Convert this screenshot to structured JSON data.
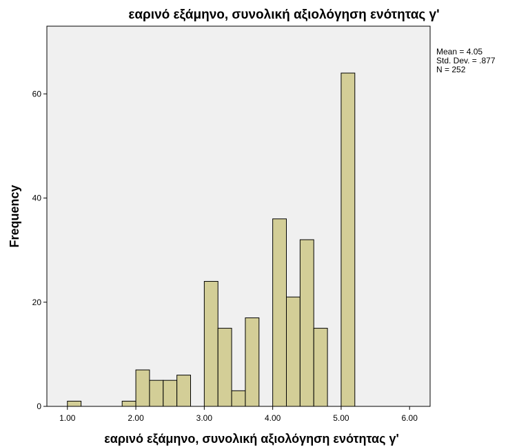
{
  "chart_data": {
    "type": "bar",
    "title": "εαρινό εξάμηνο, συνολική αξιολόγηση ενότητας γ'",
    "xlabel": "εαρινό εξάμηνο, συνολική αξιολόγηση ενότητας γ'",
    "ylabel": "Frequency",
    "xlim": [
      0.7,
      6.3
    ],
    "ylim": [
      0,
      73
    ],
    "x_ticks": [
      1.0,
      2.0,
      3.0,
      4.0,
      5.0,
      6.0
    ],
    "x_tick_labels": [
      "1.00",
      "2.00",
      "3.00",
      "4.00",
      "5.00",
      "6.00"
    ],
    "y_ticks": [
      0,
      20,
      40,
      60
    ],
    "y_tick_labels": [
      "0",
      "20",
      "40",
      "60"
    ],
    "bin_width": 0.2,
    "bins": [
      {
        "start": 1.0,
        "count": 1
      },
      {
        "start": 1.8,
        "count": 1
      },
      {
        "start": 2.0,
        "count": 7
      },
      {
        "start": 2.2,
        "count": 5
      },
      {
        "start": 2.4,
        "count": 5
      },
      {
        "start": 2.6,
        "count": 6
      },
      {
        "start": 3.0,
        "count": 24
      },
      {
        "start": 3.2,
        "count": 15
      },
      {
        "start": 3.4,
        "count": 3
      },
      {
        "start": 3.6,
        "count": 17
      },
      {
        "start": 4.0,
        "count": 36
      },
      {
        "start": 4.2,
        "count": 21
      },
      {
        "start": 4.4,
        "count": 32
      },
      {
        "start": 4.6,
        "count": 15
      },
      {
        "start": 5.0,
        "count": 64
      }
    ],
    "stats": [
      "Mean = 4.05",
      "Std. Dev. = .877",
      "N = 252"
    ],
    "grid": false
  },
  "colors": {
    "bar_fill": "#D3CE97",
    "plot_background": "#F0F0F0",
    "page_background": "#FFFFFF"
  }
}
